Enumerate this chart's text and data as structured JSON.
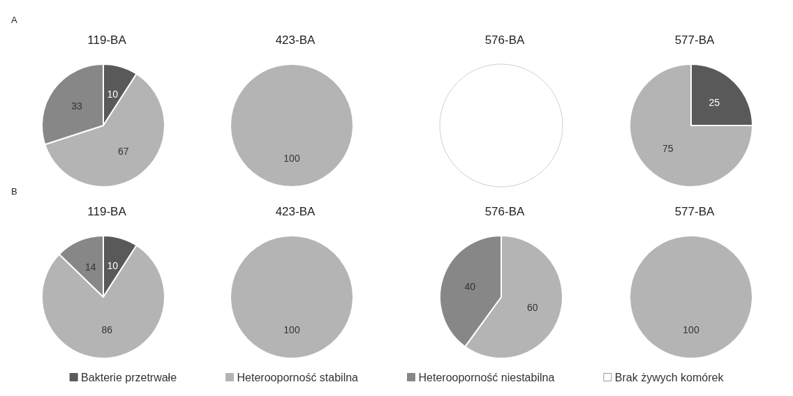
{
  "chart_data": [
    {
      "type": "pie",
      "title": "119-BA",
      "annotations": [
        "A"
      ],
      "categories": [
        "Bakterie przetrwałe",
        "Heterooporność stabilna",
        "Heterooporność niestabilna",
        "Brak żywych komórek"
      ],
      "values": [
        10,
        67,
        33,
        null
      ],
      "colors": [
        "#595959",
        "#b4b4b4",
        "#878787",
        "#ffffff"
      ],
      "data_labels": true,
      "legend": "bottom"
    },
    {
      "type": "pie",
      "title": "423-BA",
      "categories": [
        null
      ],
      "values": [
        100
      ],
      "colors": [
        "#b4b4b4"
      ],
      "data_labels": true
    },
    {
      "type": "pie",
      "title": "576-BA",
      "categories": [
        null
      ],
      "values": [
        100
      ],
      "colors": [
        "#ffffff"
      ]
    },
    {
      "type": "pie",
      "title": "577-BA",
      "categories": [
        null,
        null
      ],
      "values": [
        25,
        75
      ],
      "colors": [
        "#595959",
        "#b4b4b4"
      ],
      "data_labels": true
    },
    {
      "type": "pie",
      "title": "119-BA",
      "annotations": [
        "B"
      ],
      "categories": [
        null,
        null,
        null
      ],
      "values": [
        10,
        86,
        14
      ],
      "colors": [
        "#595959",
        "#b4b4b4",
        "#878787"
      ],
      "data_labels": true
    },
    {
      "type": "pie",
      "title": "423-BA",
      "categories": [
        null
      ],
      "values": [
        100
      ],
      "colors": [
        "#b4b4b4"
      ],
      "data_labels": true
    },
    {
      "type": "pie",
      "title": "576-BA",
      "categories": [
        null,
        null
      ],
      "values": [
        60,
        40
      ],
      "colors": [
        "#b4b4b4",
        "#878787"
      ],
      "data_labels": true
    },
    {
      "type": "pie",
      "title": "577-BA",
      "categories": [
        null
      ],
      "values": [
        100
      ],
      "colors": [
        "#b4b4b4"
      ],
      "data_labels": true
    }
  ]
}
